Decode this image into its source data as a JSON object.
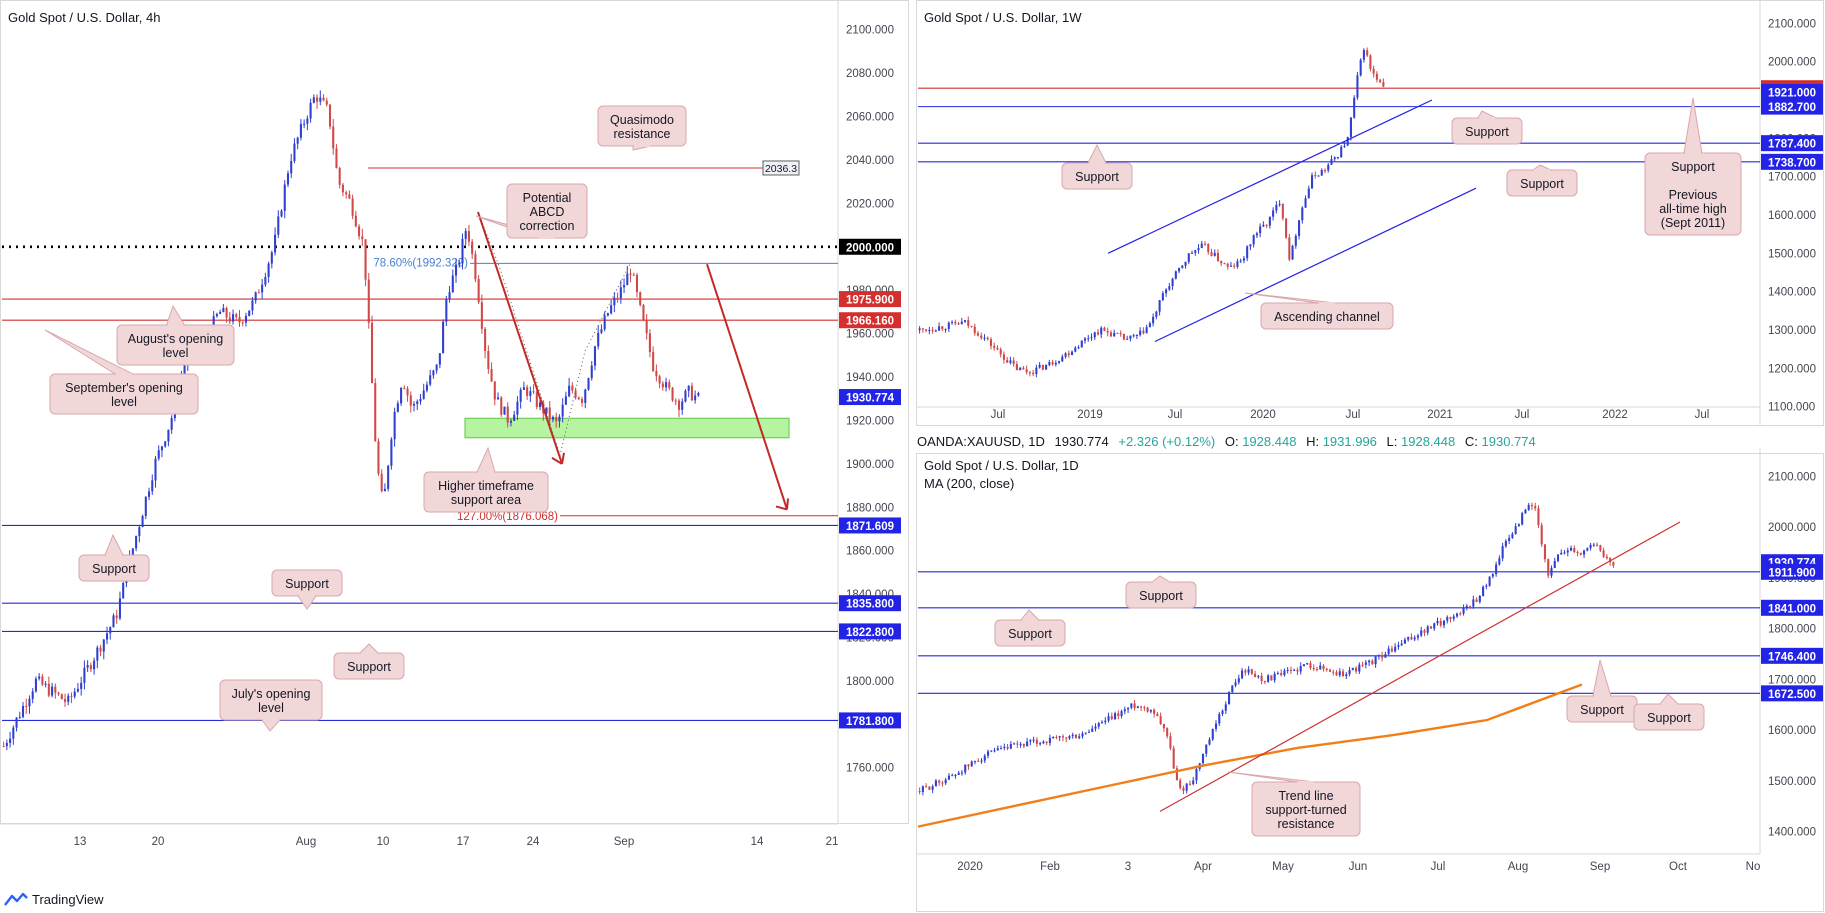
{
  "colors": {
    "bull": "#2f3fd0",
    "bear": "#d04848",
    "support_line": "#2828e0",
    "resistance_line": "#d03030",
    "label_fill": "#f2d7d9",
    "label_stroke": "#d9a7ab",
    "zone": "#90ee70",
    "ma": "#f07f1a",
    "axis_text": "#434651",
    "frame": "#d8d8d8"
  },
  "branding": {
    "name": "TradingView"
  },
  "chart_data": [
    {
      "id": "h4",
      "type": "candlestick",
      "title": "Gold Spot / U.S. Dollar, 4h",
      "ylim": [
        1735,
        2110
      ],
      "y_ticks": [
        2100,
        2080,
        2060,
        2040,
        2020,
        2000,
        1980,
        1960,
        1940,
        1920,
        1900,
        1880,
        1860,
        1840,
        1820,
        1800,
        1780,
        1760
      ],
      "x_ticks": [
        "13",
        "20",
        "Aug",
        "10",
        "17",
        "24",
        "Sep",
        "14",
        "21"
      ],
      "path": [
        [
          0,
          1770
        ],
        [
          10,
          1800
        ],
        [
          20,
          1790
        ],
        [
          27,
          1808
        ],
        [
          35,
          1830
        ],
        [
          40,
          1860
        ],
        [
          47,
          1900
        ],
        [
          52,
          1920
        ],
        [
          57,
          1950
        ],
        [
          62,
          1955
        ],
        [
          67,
          1970
        ],
        [
          73,
          1965
        ],
        [
          78,
          1975
        ],
        [
          84,
          2000
        ],
        [
          89,
          2040
        ],
        [
          94,
          2060
        ],
        [
          97,
          2070
        ],
        [
          101,
          2062
        ],
        [
          104,
          2030
        ],
        [
          108,
          2020
        ],
        [
          112,
          2000
        ],
        [
          114,
          1950
        ],
        [
          116,
          1900
        ],
        [
          118,
          1880
        ],
        [
          121,
          1920
        ],
        [
          124,
          1940
        ],
        [
          127,
          1925
        ],
        [
          131,
          1935
        ],
        [
          135,
          1945
        ],
        [
          138,
          1980
        ],
        [
          141,
          1990
        ],
        [
          144,
          2010
        ],
        [
          147,
          1985
        ],
        [
          150,
          1950
        ],
        [
          153,
          1930
        ],
        [
          157,
          1920
        ],
        [
          162,
          1935
        ],
        [
          167,
          1926
        ],
        [
          172,
          1918
        ],
        [
          176,
          1935
        ],
        [
          180,
          1930
        ],
        [
          184,
          1955
        ],
        [
          188,
          1970
        ],
        [
          192,
          1980
        ],
        [
          195,
          1990
        ],
        [
          198,
          1970
        ],
        [
          202,
          1945
        ],
        [
          206,
          1935
        ],
        [
          210,
          1928
        ],
        [
          213,
          1933
        ],
        [
          216,
          1930
        ]
      ],
      "h_levels": [
        {
          "value": 2000.0,
          "label": "2000.000",
          "kind": "black",
          "style": "dotted"
        },
        {
          "value": 1975.9,
          "label": "1975.900",
          "kind": "red",
          "style": "solid"
        },
        {
          "value": 1966.16,
          "label": "1966.160",
          "kind": "red",
          "style": "solid"
        },
        {
          "value": 1930.774,
          "label": "1930.774",
          "kind": "blue",
          "style": "none"
        },
        {
          "value": 1871.609,
          "label": "1871.609",
          "kind": "blue",
          "style": "solid"
        },
        {
          "value": 1835.8,
          "label": "1835.800",
          "kind": "blue",
          "style": "solid"
        },
        {
          "value": 1822.8,
          "label": "1822.800",
          "kind": "blue",
          "style": "solid"
        },
        {
          "value": 1781.8,
          "label": "1781.800",
          "kind": "blue",
          "style": "solid"
        }
      ],
      "quasimodo_level": {
        "value": 2036.3,
        "label": "2036.3"
      },
      "fib_upper": {
        "value": 1992.329,
        "label": "78.60%(1992.329)"
      },
      "fib_lower": {
        "value": 1876.068,
        "label": "127.00%(1876.068)"
      },
      "zone": {
        "from": 1912,
        "to": 1921
      },
      "annotations": [
        {
          "text": [
            "Quasimodo",
            "resistance"
          ]
        },
        {
          "text": [
            "Potential",
            "ABCD",
            "correction"
          ]
        },
        {
          "text": [
            "August's opening",
            "level"
          ]
        },
        {
          "text": [
            "September's opening",
            "level"
          ]
        },
        {
          "text": [
            "Higher timeframe",
            "support area"
          ]
        },
        {
          "text": [
            "Support"
          ]
        },
        {
          "text": [
            "Support"
          ]
        },
        {
          "text": [
            "Support"
          ]
        },
        {
          "text": [
            "July's opening",
            "level"
          ]
        }
      ]
    },
    {
      "id": "w1",
      "type": "candlestick",
      "title": "Gold Spot / U.S. Dollar, 1W",
      "ylim": [
        1060,
        2140
      ],
      "y_ticks": [
        2100,
        2000,
        1900,
        1800,
        1700,
        1600,
        1500,
        1400,
        1300,
        1200,
        1100
      ],
      "x_ticks": [
        "Jul",
        "2019",
        "Jul",
        "2020",
        "Jul",
        "2021",
        "Jul",
        "2022",
        "Jul"
      ],
      "path": [
        [
          0,
          1300
        ],
        [
          8,
          1310
        ],
        [
          14,
          1320
        ],
        [
          20,
          1280
        ],
        [
          26,
          1230
        ],
        [
          30,
          1200
        ],
        [
          34,
          1190
        ],
        [
          40,
          1210
        ],
        [
          46,
          1240
        ],
        [
          52,
          1280
        ],
        [
          56,
          1300
        ],
        [
          60,
          1290
        ],
        [
          64,
          1275
        ],
        [
          68,
          1285
        ],
        [
          72,
          1320
        ],
        [
          76,
          1400
        ],
        [
          80,
          1450
        ],
        [
          84,
          1500
        ],
        [
          88,
          1520
        ],
        [
          92,
          1490
        ],
        [
          96,
          1460
        ],
        [
          100,
          1480
        ],
        [
          104,
          1550
        ],
        [
          108,
          1580
        ],
        [
          112,
          1640
        ],
        [
          115,
          1480
        ],
        [
          118,
          1600
        ],
        [
          122,
          1700
        ],
        [
          126,
          1720
        ],
        [
          130,
          1760
        ],
        [
          133,
          1800
        ],
        [
          136,
          1960
        ],
        [
          138,
          2040
        ],
        [
          140,
          1980
        ],
        [
          142,
          1950
        ],
        [
          144,
          1930
        ]
      ],
      "h_levels": [
        {
          "value": 1930.774,
          "label": "1930.774",
          "kind": "red",
          "style": "solid"
        },
        {
          "value": 1921.0,
          "label": "1921.000",
          "kind": "blue",
          "style": "none"
        },
        {
          "value": 1882.7,
          "label": "1882.700",
          "kind": "blue",
          "style": "solid"
        },
        {
          "value": 1787.4,
          "label": "1787.400",
          "kind": "blue",
          "style": "solid"
        },
        {
          "value": 1738.7,
          "label": "1738.700",
          "kind": "blue",
          "style": "solid"
        }
      ],
      "annotations": [
        {
          "text": [
            "Support"
          ]
        },
        {
          "text": [
            "Support"
          ]
        },
        {
          "text": [
            "Support"
          ]
        },
        {
          "text": [
            "Support",
            "",
            "Previous",
            "all-time high",
            "(Sept 2011)"
          ]
        },
        {
          "text": [
            "Ascending channel"
          ]
        }
      ]
    },
    {
      "id": "d1",
      "type": "candlestick",
      "title": "Gold Spot / U.S. Dollar, 1D",
      "subtitle": "MA (200, close)",
      "ylim": [
        1360,
        2140
      ],
      "y_ticks": [
        2100,
        2000,
        1900,
        1800,
        1700,
        1600,
        1500,
        1400
      ],
      "x_ticks": [
        "2020",
        "Feb",
        "3",
        "Apr",
        "May",
        "Jun",
        "Jul",
        "Aug",
        "Sep",
        "Oct",
        "No"
      ],
      "path": [
        [
          0,
          1480
        ],
        [
          10,
          1510
        ],
        [
          20,
          1550
        ],
        [
          30,
          1570
        ],
        [
          40,
          1580
        ],
        [
          50,
          1590
        ],
        [
          58,
          1620
        ],
        [
          66,
          1650
        ],
        [
          72,
          1640
        ],
        [
          76,
          1600
        ],
        [
          80,
          1480
        ],
        [
          84,
          1500
        ],
        [
          88,
          1560
        ],
        [
          92,
          1620
        ],
        [
          96,
          1680
        ],
        [
          100,
          1720
        ],
        [
          106,
          1700
        ],
        [
          112,
          1710
        ],
        [
          120,
          1730
        ],
        [
          130,
          1710
        ],
        [
          138,
          1730
        ],
        [
          146,
          1760
        ],
        [
          154,
          1790
        ],
        [
          160,
          1810
        ],
        [
          166,
          1830
        ],
        [
          172,
          1860
        ],
        [
          176,
          1900
        ],
        [
          180,
          1960
        ],
        [
          184,
          2000
        ],
        [
          188,
          2050
        ],
        [
          190,
          2030
        ],
        [
          192,
          1960
        ],
        [
          194,
          1900
        ],
        [
          196,
          1940
        ],
        [
          200,
          1960
        ],
        [
          204,
          1950
        ],
        [
          208,
          1970
        ],
        [
          211,
          1940
        ],
        [
          214,
          1930
        ]
      ],
      "ma_path": [
        [
          0,
          1410
        ],
        [
          30,
          1450
        ],
        [
          60,
          1490
        ],
        [
          90,
          1530
        ],
        [
          120,
          1565
        ],
        [
          150,
          1590
        ],
        [
          180,
          1620
        ],
        [
          210,
          1690
        ]
      ],
      "h_levels": [
        {
          "value": 1930.774,
          "label": "1930.774",
          "kind": "blue",
          "style": "none"
        },
        {
          "value": 1911.9,
          "label": "1911.900",
          "kind": "blue",
          "style": "solid"
        },
        {
          "value": 1841.0,
          "label": "1841.000",
          "kind": "blue",
          "style": "solid"
        },
        {
          "value": 1746.4,
          "label": "1746.400",
          "kind": "blue",
          "style": "solid"
        },
        {
          "value": 1672.5,
          "label": "1672.500",
          "kind": "blue",
          "style": "solid"
        }
      ],
      "annotations": [
        {
          "text": [
            "Support"
          ]
        },
        {
          "text": [
            "Support"
          ]
        },
        {
          "text": [
            "Support"
          ]
        },
        {
          "text": [
            "Support"
          ]
        },
        {
          "text": [
            "Trend line",
            "support-turned",
            "resistance"
          ]
        }
      ]
    }
  ],
  "legend_d1": {
    "symbol": "OANDA:XAUUSD, 1D",
    "last": "1930.774",
    "change": "+2.326 (+0.12%)",
    "o_label": "O:",
    "o": "1928.448",
    "h_label": "H:",
    "h": "1931.996",
    "l_label": "L:",
    "l": "1928.448",
    "c_label": "C:",
    "c": "1930.774"
  }
}
